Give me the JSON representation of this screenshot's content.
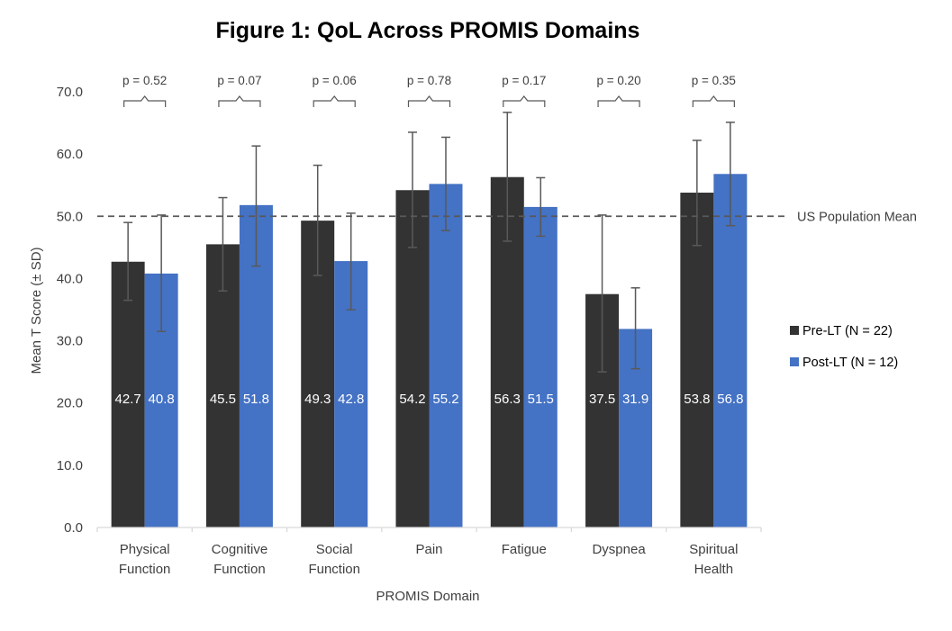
{
  "chart_data": {
    "type": "bar",
    "title": "Figure 1: QoL Across PROMIS Domains",
    "xlabel": "PROMIS Domain",
    "ylabel": "Mean T Score (± SD)",
    "ylim": [
      0,
      70
    ],
    "yticks": [
      "0.0",
      "10.0",
      "20.0",
      "30.0",
      "40.0",
      "50.0",
      "60.0",
      "70.0"
    ],
    "grid": false,
    "legend_position": "right",
    "categories": [
      [
        "Physical",
        "Function"
      ],
      [
        "Cognitive",
        "Function"
      ],
      [
        "Social",
        "Function"
      ],
      [
        "Pain"
      ],
      [
        "Fatigue"
      ],
      [
        "Dyspnea"
      ],
      [
        "Spiritual",
        "Health"
      ]
    ],
    "series": [
      {
        "name": "Pre-LT (N = 22)",
        "color": "#333333",
        "values": [
          42.7,
          45.5,
          49.3,
          54.2,
          56.3,
          37.5,
          53.8
        ],
        "labels": [
          "42.7",
          "45.5",
          "49.3",
          "54.2",
          "56.3",
          "37.5",
          "53.8"
        ],
        "error_low": [
          36.5,
          38.0,
          40.5,
          45.0,
          46.0,
          25.0,
          45.3
        ],
        "error_high": [
          49.0,
          53.0,
          58.2,
          63.5,
          66.7,
          50.2,
          62.2
        ]
      },
      {
        "name": "Post-LT (N = 12)",
        "color": "#4472c4",
        "values": [
          40.8,
          51.8,
          42.8,
          55.2,
          51.5,
          31.9,
          56.8
        ],
        "labels": [
          "40.8",
          "51.8",
          "42.8",
          "55.2",
          "51.5",
          "31.9",
          "56.8"
        ],
        "error_low": [
          31.5,
          42.0,
          35.0,
          47.7,
          46.8,
          25.5,
          48.5
        ],
        "error_high": [
          50.2,
          61.3,
          50.5,
          62.7,
          56.2,
          38.5,
          65.1
        ]
      }
    ],
    "p_values": [
      "p = 0.52",
      "p = 0.07",
      "p = 0.06",
      "p = 0.78",
      "p = 0.17",
      "p = 0.20",
      "p = 0.35"
    ],
    "reference_line": {
      "value": 50,
      "label": "US Population Mean",
      "style": "dashed",
      "color": "#595959"
    }
  }
}
